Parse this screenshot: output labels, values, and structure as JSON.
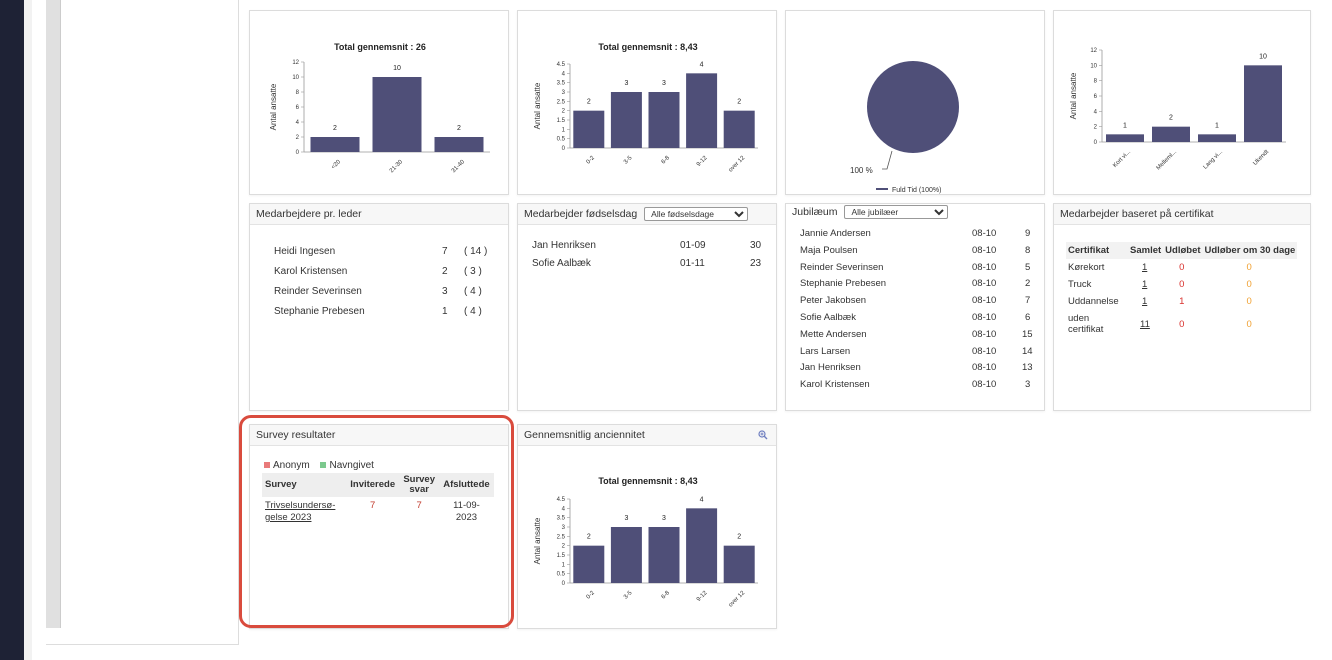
{
  "charts": {
    "total_avg_1": {
      "title": "Total gennemsnit : 26",
      "ylabel": "Antal ansatte",
      "ticks": [
        "0",
        "2",
        "4",
        "6",
        "8",
        "10",
        "12"
      ],
      "categories": [
        "<20",
        "21-30",
        "31-40"
      ],
      "values": [
        2,
        10,
        2
      ],
      "labels": [
        "2",
        "10",
        "2"
      ]
    },
    "total_avg_2": {
      "title": "Total gennemsnit : 8,43",
      "ylabel": "Antal ansatte",
      "ticks": [
        "0",
        "0.5",
        "1",
        "1.5",
        "2",
        "2.5",
        "3",
        "3.5",
        "4",
        "4.5"
      ],
      "categories": [
        "0-2",
        "3-5",
        "6-8",
        "9-12",
        "over 12"
      ],
      "values": [
        2,
        3,
        3,
        4,
        2
      ],
      "labels": [
        "2",
        "3",
        "3",
        "4",
        "2"
      ]
    },
    "pie": {
      "slice_label": "100 %",
      "legend": "Fuld Tid (100%)"
    },
    "certifikat": {
      "ylabel": "Antal ansatte",
      "ticks": [
        "0",
        "2",
        "4",
        "6",
        "8",
        "10",
        "12"
      ],
      "categories": [
        "Kort vi...",
        "Melleml...",
        "Lang vi...",
        "Ukendt"
      ],
      "values": [
        1,
        2,
        1,
        10
      ],
      "labels": [
        "1",
        "2",
        "1",
        "10"
      ]
    },
    "anciennitet": {
      "title": "Total gennemsnit : 8,43",
      "ylabel": "Antal ansatte",
      "ticks": [
        "0",
        "0.5",
        "1",
        "1.5",
        "2",
        "2.5",
        "3",
        "3.5",
        "4",
        "4.5"
      ],
      "categories": [
        "0-2",
        "3-5",
        "6-8",
        "9-12",
        "over 12"
      ],
      "values": [
        2,
        3,
        3,
        4,
        2
      ],
      "labels": [
        "2",
        "3",
        "3",
        "4",
        "2"
      ]
    }
  },
  "chart_data": [
    {
      "type": "bar",
      "title": "Total gennemsnit : 26",
      "ylabel": "Antal ansatte",
      "categories": [
        "<20",
        "21-30",
        "31-40"
      ],
      "values": [
        2,
        10,
        2
      ],
      "ylim": [
        0,
        12
      ]
    },
    {
      "type": "bar",
      "title": "Total gennemsnit : 8,43",
      "ylabel": "Antal ansatte",
      "categories": [
        "0-2",
        "3-5",
        "6-8",
        "9-12",
        "over 12"
      ],
      "values": [
        2,
        3,
        3,
        4,
        2
      ],
      "ylim": [
        0,
        4.5
      ]
    },
    {
      "type": "pie",
      "categories": [
        "Fuld Tid (100%)"
      ],
      "values": [
        100
      ]
    },
    {
      "type": "bar",
      "ylabel": "Antal ansatte",
      "categories": [
        "Kort vi...",
        "Melleml...",
        "Lang vi...",
        "Ukendt"
      ],
      "values": [
        1,
        2,
        1,
        10
      ],
      "ylim": [
        0,
        12
      ]
    },
    {
      "type": "bar",
      "title": "Total gennemsnit : 8,43",
      "ylabel": "Antal ansatte",
      "categories": [
        "0-2",
        "3-5",
        "6-8",
        "9-12",
        "over 12"
      ],
      "values": [
        2,
        3,
        3,
        4,
        2
      ],
      "ylim": [
        0,
        4.5
      ]
    }
  ],
  "leder": {
    "title": "Medarbejdere pr. leder",
    "rows": [
      {
        "name": "Heidi Ingesen",
        "count": "7",
        "total": "( 14 )"
      },
      {
        "name": "Karol Kristensen",
        "count": "2",
        "total": "( 3 )"
      },
      {
        "name": "Reinder Severinsen",
        "count": "3",
        "total": "( 4 )"
      },
      {
        "name": "Stephanie Prebesen",
        "count": "1",
        "total": "( 4 )"
      }
    ]
  },
  "fodselsdag": {
    "title": "Medarbejder fødselsdag",
    "select": "Alle fødselsdage",
    "rows": [
      {
        "name": "Jan Henriksen",
        "date": "01-09",
        "age": "30"
      },
      {
        "name": "Sofie Aalbæk",
        "date": "01-11",
        "age": "23"
      }
    ]
  },
  "jubilaeum": {
    "title": "Jubilæum",
    "select": "Alle jubilæer",
    "rows": [
      {
        "name": "Jannie Andersen",
        "date": "08-10",
        "years": "9"
      },
      {
        "name": "Maja Poulsen",
        "date": "08-10",
        "years": "8"
      },
      {
        "name": "Reinder Severinsen",
        "date": "08-10",
        "years": "5"
      },
      {
        "name": "Stephanie Prebesen",
        "date": "08-10",
        "years": "2"
      },
      {
        "name": "Peter Jakobsen",
        "date": "08-10",
        "years": "7"
      },
      {
        "name": "Sofie Aalbæk",
        "date": "08-10",
        "years": "6"
      },
      {
        "name": "Mette Andersen",
        "date": "08-10",
        "years": "15"
      },
      {
        "name": "Lars Larsen",
        "date": "08-10",
        "years": "14"
      },
      {
        "name": "Jan Henriksen",
        "date": "08-10",
        "years": "13"
      },
      {
        "name": "Karol Kristensen",
        "date": "08-10",
        "years": "3"
      }
    ]
  },
  "certifikat": {
    "title": "Medarbejder baseret på certifikat",
    "headers": [
      "Certifikat",
      "Samlet",
      "Udløbet",
      "Udløber om 30 dage"
    ],
    "rows": [
      {
        "name": "Kørekort",
        "samlet": "1",
        "udlobet": "0",
        "udlober": "0"
      },
      {
        "name": "Truck",
        "samlet": "1",
        "udlobet": "0",
        "udlober": "0"
      },
      {
        "name": "Uddannelse",
        "samlet": "1",
        "udlobet": "1",
        "udlober": "0"
      },
      {
        "name": "uden certifikat",
        "samlet": "11",
        "udlobet": "0",
        "udlober": "0"
      }
    ],
    "colors": {
      "udlobet": "#d9302c",
      "udlober": "#f0a030"
    }
  },
  "survey": {
    "title": "Survey resultater",
    "legend_anonym": "Anonym",
    "legend_navngivet": "Navngivet",
    "colors": {
      "anonym": "#e97a7a",
      "navngivet": "#7cc98e",
      "value": "#c0392b"
    },
    "headers": {
      "survey": "Survey",
      "inviterede": "Inviterede",
      "svar_line1": "Survey",
      "svar_line2": "svar",
      "afsluttede": "Afsluttede"
    },
    "rows": [
      {
        "name_line1": "Trivselsundersø-",
        "name_line2": "gelse 2023",
        "inviterede": "7",
        "svar": "7",
        "afsluttede_line1": "11-09-",
        "afsluttede_line2": "2023"
      }
    ]
  },
  "anciennitet": {
    "title": "Gennemsnitlig anciennitet"
  }
}
